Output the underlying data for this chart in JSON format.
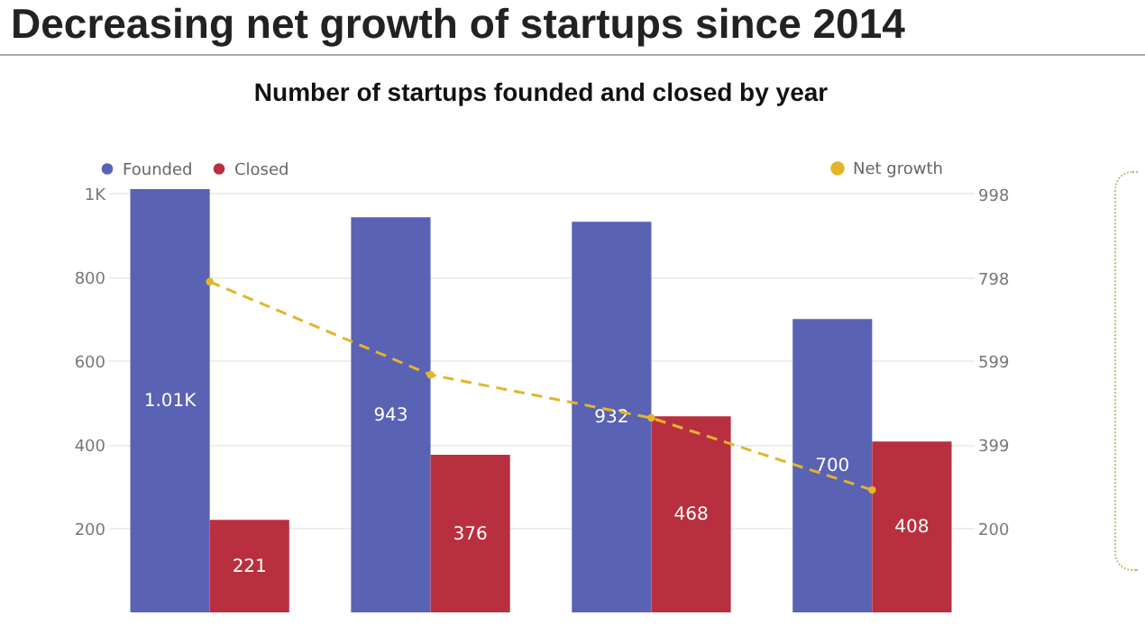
{
  "chart_data": {
    "type": "bar",
    "title": "Decreasing net growth of startups since 2014",
    "subtitle": "Number of startups founded and closed by year",
    "categories": [
      null,
      null,
      null,
      null
    ],
    "series": [
      {
        "name": "Founded",
        "type": "bar",
        "color": "#5a62b4",
        "values": [
          1010,
          943,
          932,
          700
        ],
        "value_labels": [
          "1.01K",
          "943",
          "932",
          "700"
        ]
      },
      {
        "name": "Closed",
        "type": "bar",
        "color": "#b8303f",
        "values": [
          221,
          376,
          468,
          408
        ],
        "value_labels": [
          "221",
          "376",
          "468",
          "408"
        ]
      },
      {
        "name": "Net growth",
        "type": "line",
        "axis": "y2",
        "color": "#e3b52c",
        "values": [
          789,
          567,
          464,
          292
        ],
        "line_style": "dashed",
        "marker": "circle"
      }
    ],
    "ylim": [
      0,
      1010
    ],
    "yticks": [
      200,
      400,
      600,
      800,
      {
        "value": 1000,
        "label": "1K"
      }
    ],
    "y2lim": [
      0,
      1010
    ],
    "y2ticks": [
      200,
      399,
      599,
      798,
      998
    ],
    "grid": "y",
    "legend": "top"
  }
}
